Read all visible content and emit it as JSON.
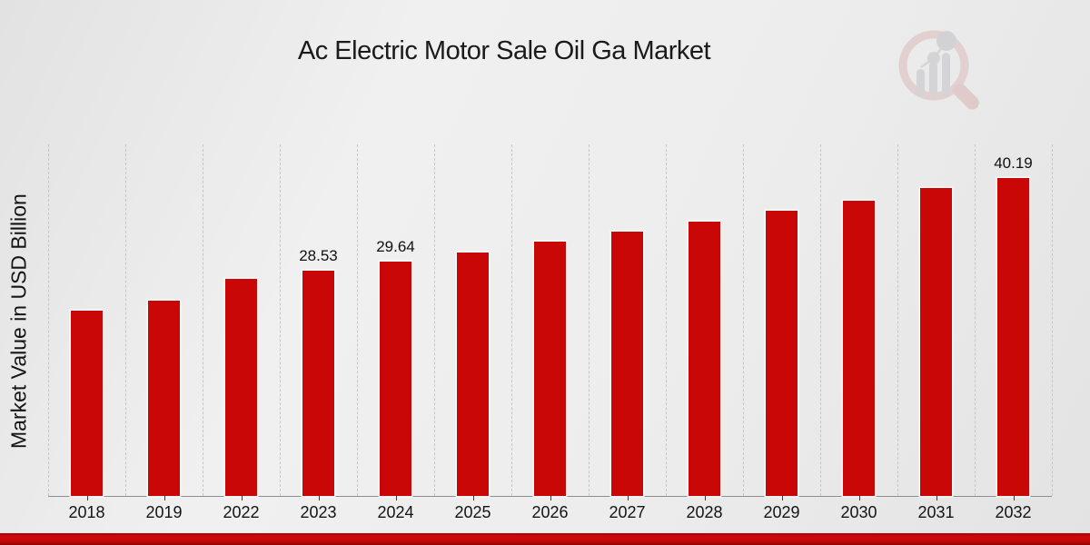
{
  "header": {
    "title": "Ac Electric Motor Sale Oil Ga Market"
  },
  "chart_data": {
    "type": "bar",
    "title": "Ac Electric Motor Sale Oil Ga Market",
    "xlabel": "",
    "ylabel": "Market Value in USD Billion",
    "categories": [
      "2018",
      "2019",
      "2022",
      "2023",
      "2024",
      "2025",
      "2026",
      "2027",
      "2028",
      "2029",
      "2030",
      "2031",
      "2032"
    ],
    "values": [
      23.46,
      24.72,
      27.54,
      28.53,
      29.64,
      30.87,
      32.2,
      33.46,
      34.73,
      36.11,
      37.43,
      38.98,
      40.19
    ],
    "bar_labels": [
      "",
      "",
      "",
      "28.53",
      "29.64",
      "",
      "",
      "",
      "",
      "",
      "",
      "",
      "40.19"
    ],
    "ylim": [
      0,
      44.5
    ],
    "grid": "vertical-dashed",
    "legend": "none",
    "bar_color": "#c90707",
    "gridline_color": "#c6c6c6",
    "axis_color": "#8f8f8f",
    "label_color": "#111111",
    "banner_color": "#c40808"
  },
  "watermark": {
    "name": "market-research-magnifier-logo",
    "ring_color": "#dcb9b9",
    "bar_color": "#c3c3c6"
  }
}
